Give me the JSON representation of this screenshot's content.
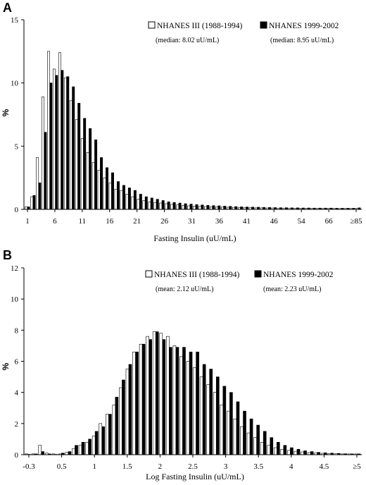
{
  "chart_data": [
    {
      "type": "bar",
      "panel": "A",
      "ylabel": "%",
      "xlabel": "Fasting Insulin (uU/mL)",
      "ylim": [
        0,
        15
      ],
      "yticks": [
        "0",
        "5",
        "10",
        "15"
      ],
      "xtick_labels": [
        "1",
        "6",
        "11",
        "16",
        "21",
        "26",
        "31",
        "36",
        "41",
        "46",
        "54",
        "66",
        "≥85"
      ],
      "legend": "top-right",
      "series": [
        {
          "name": "NHANES III (1988-1994)",
          "note": "(median: 8.02 uU/mL)",
          "color": "#ffffff",
          "values": [
            0.2,
            1.0,
            4.1,
            8.9,
            12.5,
            11.1,
            12.4,
            10.4,
            8.6,
            7.1,
            5.6,
            4.5,
            3.7,
            3.1,
            2.5,
            2.1,
            1.6,
            1.5,
            1.2,
            1.0,
            0.8,
            0.7,
            0.6,
            0.55,
            0.5,
            0.45,
            0.4,
            0.35,
            0.3,
            0.28,
            0.26,
            0.24,
            0.22,
            0.2,
            0.19,
            0.18,
            0.17,
            0.16,
            0.15,
            0.14,
            0.13,
            0.12,
            0.12,
            0.11,
            0.11,
            0.1,
            0.1,
            0.1,
            0.09,
            0.09,
            0.09,
            0.08,
            0.08,
            0.08,
            0.08,
            0.07,
            0.07,
            0.07,
            0.07,
            0.07
          ]
        },
        {
          "name": "NHANES 1999-2002",
          "note": "(median: 8.95 uU/mL)",
          "color": "#000000",
          "values": [
            0.2,
            1.1,
            2.1,
            6.1,
            10.0,
            10.6,
            11.0,
            10.5,
            9.7,
            8.4,
            7.2,
            6.4,
            5.5,
            4.1,
            3.3,
            2.9,
            2.2,
            1.9,
            1.7,
            1.5,
            1.2,
            1.0,
            0.9,
            0.8,
            0.7,
            0.6,
            0.55,
            0.5,
            0.45,
            0.42,
            0.38,
            0.35,
            0.32,
            0.3,
            0.28,
            0.26,
            0.24,
            0.22,
            0.2,
            0.19,
            0.18,
            0.17,
            0.16,
            0.15,
            0.14,
            0.13,
            0.13,
            0.12,
            0.12,
            0.11,
            0.11,
            0.1,
            0.1,
            0.1,
            0.1,
            0.09,
            0.09,
            0.09,
            0.09,
            0.12
          ]
        }
      ]
    },
    {
      "type": "bar",
      "panel": "B",
      "ylabel": "%",
      "xlabel": "Log Fasting Insulin (uU/mL)",
      "ylim": [
        0,
        12
      ],
      "yticks": [
        "0",
        "2",
        "4",
        "6",
        "8",
        "10",
        "12"
      ],
      "xtick_labels": [
        "-0.3",
        "0.5",
        "1",
        "1.5",
        "2",
        "2.5",
        "3",
        "3.5",
        "4",
        "4.5",
        "≥5"
      ],
      "legend": "top-right",
      "series": [
        {
          "name": "NHANES III (1988-1994)",
          "note": "(mean: 2.12 uU/mL)",
          "color": "#ffffff",
          "values": [
            0.05,
            0.05,
            0.6,
            0.1,
            0.05,
            0.05,
            0.15,
            0.4,
            0.6,
            0.8,
            1.2,
            2.0,
            2.6,
            3.2,
            4.3,
            5.5,
            6.6,
            7.1,
            7.6,
            7.9,
            7.8,
            7.6,
            7.0,
            6.3,
            6.0,
            5.6,
            5.0,
            4.5,
            4.0,
            3.2,
            2.8,
            2.3,
            1.8,
            1.4,
            1.1,
            0.8,
            0.6,
            0.45,
            0.35,
            0.28,
            0.22,
            0.18,
            0.14,
            0.11,
            0.09,
            0.08,
            0.06,
            0.05,
            0.05,
            0.05
          ]
        },
        {
          "name": "NHANES 1999-2002",
          "note": "(mean: 2.23 uU/mL)",
          "color": "#000000",
          "values": [
            0.0,
            0.05,
            0.2,
            0.05,
            0.02,
            0.1,
            0.2,
            0.6,
            0.8,
            1.0,
            1.5,
            1.8,
            2.6,
            3.7,
            4.8,
            5.8,
            6.6,
            7.1,
            7.4,
            7.9,
            7.4,
            6.9,
            6.9,
            6.9,
            6.6,
            6.6,
            5.8,
            5.5,
            5.0,
            4.4,
            4.0,
            3.4,
            2.8,
            2.3,
            1.9,
            1.5,
            1.1,
            0.8,
            0.6,
            0.45,
            0.35,
            0.25,
            0.2,
            0.15,
            0.12,
            0.1,
            0.08,
            0.06,
            0.05,
            0.05
          ]
        }
      ]
    }
  ]
}
